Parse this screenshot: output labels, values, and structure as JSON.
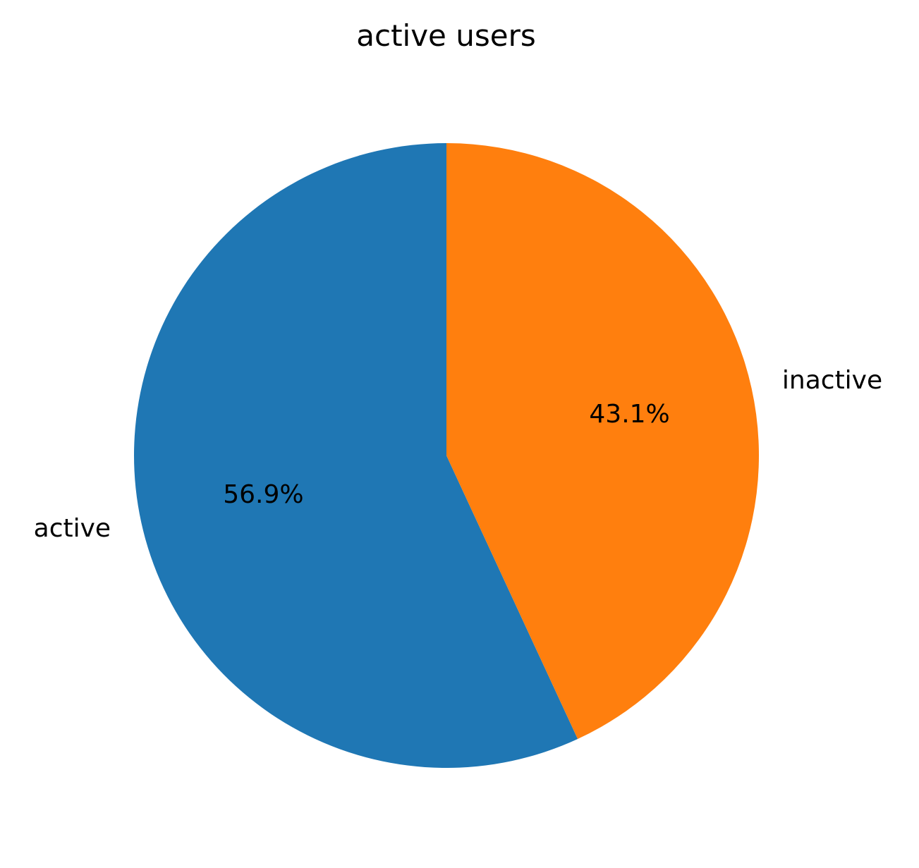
{
  "chart_data": {
    "type": "pie",
    "title": "active users",
    "slices": [
      {
        "label": "active",
        "value": 56.9,
        "pct_label": "56.9%",
        "color": "#1f77b4"
      },
      {
        "label": "inactive",
        "value": 43.1,
        "pct_label": "43.1%",
        "color": "#ff7f0e"
      }
    ],
    "start_angle_deg": 90,
    "direction": "counterclockwise"
  }
}
